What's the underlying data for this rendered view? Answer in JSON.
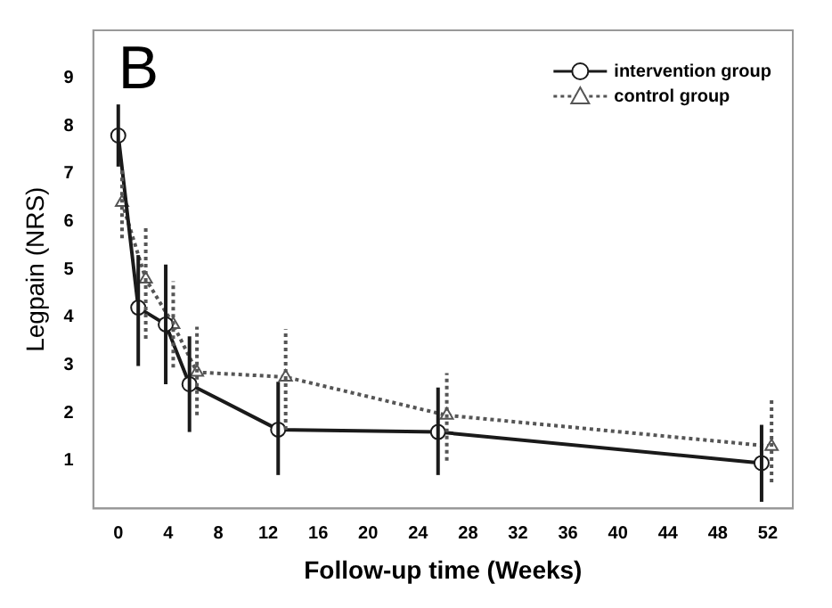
{
  "chart_data": {
    "type": "line",
    "xlabel": "Follow-up time (Weeks)",
    "ylabel": "Legpain (NRS)",
    "annotations": [
      "B"
    ],
    "xlim": [
      -2,
      54
    ],
    "xticks": [
      0,
      4,
      8,
      12,
      16,
      20,
      24,
      28,
      32,
      36,
      40,
      44,
      48,
      52
    ],
    "ylim": [
      0,
      10
    ],
    "yticks": [
      1,
      2,
      3,
      4,
      5,
      6,
      7,
      8,
      9
    ],
    "grid": false,
    "legend": "top right",
    "series": [
      {
        "name": "intervention group",
        "color": "#1a1a1a",
        "marker": "circle",
        "line_style": "solid",
        "x": [
          0,
          1.6,
          3.8,
          5.7,
          12.8,
          25.6,
          51.5
        ],
        "values": [
          7.8,
          4.2,
          3.85,
          2.6,
          1.65,
          1.6,
          0.95
        ],
        "errors": [
          [
            7.15,
            8.45
          ],
          [
            2.98,
            5.3
          ],
          [
            2.6,
            5.1
          ],
          [
            1.6,
            3.6
          ],
          [
            0.7,
            2.65
          ],
          [
            0.7,
            2.53
          ],
          [
            0.14,
            1.75
          ]
        ]
      },
      {
        "name": "control group",
        "color": "#555555",
        "marker": "triangle",
        "line_style": "dotted",
        "x": [
          0.3,
          2.2,
          4.4,
          6.3,
          13.4,
          26.3,
          52.3
        ],
        "values": [
          6.4,
          4.8,
          3.85,
          2.85,
          2.75,
          1.95,
          1.3
        ],
        "errors": [
          [
            5.65,
            7.1
          ],
          [
            3.55,
            5.9
          ],
          [
            2.95,
            4.75
          ],
          [
            1.95,
            3.8
          ],
          [
            1.65,
            3.75
          ],
          [
            1.0,
            2.83
          ],
          [
            0.55,
            2.27
          ]
        ]
      }
    ]
  }
}
